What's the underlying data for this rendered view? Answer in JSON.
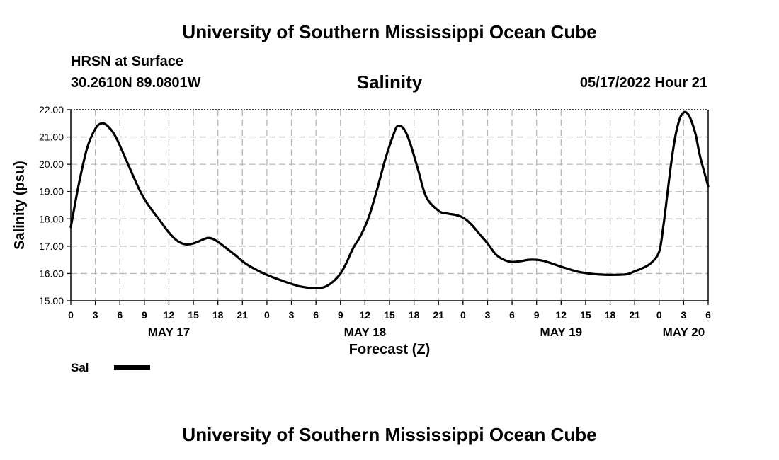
{
  "header": {
    "organization": "University of Southern Mississippi Ocean Cube",
    "station": "HRSN at Surface",
    "location": "30.2610N  89.0801W",
    "datetime": "05/17/2022 Hour 21"
  },
  "footer": {
    "organization": "University of Southern Mississippi Ocean Cube"
  },
  "chart_data": {
    "type": "line",
    "title": "Salinity",
    "xlabel": "Forecast (Z)",
    "ylabel": "Salinity (psu)",
    "ylim": [
      15.0,
      22.0
    ],
    "xlim": [
      0,
      78
    ],
    "x_unit": "hours since 2022-05-17 00Z",
    "y_ticks": [
      "15.00",
      "16.00",
      "17.00",
      "18.00",
      "19.00",
      "20.00",
      "21.00",
      "22.00"
    ],
    "x_tick_labels": [
      "0",
      "3",
      "6",
      "9",
      "12",
      "15",
      "18",
      "21",
      "0",
      "3",
      "6",
      "9",
      "12",
      "15",
      "18",
      "21",
      "0",
      "3",
      "6",
      "9",
      "12",
      "15",
      "18",
      "21",
      "0",
      "3",
      "6"
    ],
    "day_labels": [
      {
        "label": "MAY 17",
        "hour": 12
      },
      {
        "label": "MAY 18",
        "hour": 36
      },
      {
        "label": "MAY 19",
        "hour": 60
      },
      {
        "label": "MAY 20",
        "hour": 75
      }
    ],
    "grid": true,
    "legend": {
      "position": "bottom-left",
      "entries": [
        {
          "name": "Sal",
          "color": "#000000"
        }
      ]
    },
    "series": [
      {
        "name": "Sal",
        "color": "#000000",
        "x": [
          0,
          1,
          2,
          3,
          3.75,
          4.5,
          5.5,
          7,
          8.5,
          9.5,
          11,
          12,
          13,
          14,
          15,
          16,
          16.75,
          17.5,
          18.5,
          20,
          21,
          22,
          24,
          26,
          27,
          28,
          29,
          30,
          31,
          32,
          33,
          33.75,
          34.5,
          35.5,
          36.5,
          37.5,
          38.5,
          39.5,
          40,
          40.75,
          41.5,
          42.5,
          43.5,
          45,
          46,
          47,
          48,
          49,
          50,
          51,
          52,
          53,
          54,
          55,
          56,
          57,
          58,
          60,
          62,
          64,
          66,
          68,
          69,
          70,
          71,
          72,
          72.5,
          73,
          73.5,
          74,
          74.5,
          75,
          75.5,
          76,
          76.5,
          77,
          78
        ],
        "y": [
          17.7,
          19.3,
          20.6,
          21.3,
          21.5,
          21.4,
          21.0,
          20.0,
          19.0,
          18.5,
          17.9,
          17.5,
          17.2,
          17.07,
          17.1,
          17.22,
          17.3,
          17.25,
          17.05,
          16.7,
          16.45,
          16.25,
          15.95,
          15.72,
          15.62,
          15.53,
          15.48,
          15.47,
          15.5,
          15.68,
          16.0,
          16.4,
          16.9,
          17.4,
          18.1,
          19.1,
          20.2,
          21.1,
          21.4,
          21.3,
          20.8,
          19.8,
          18.8,
          18.3,
          18.2,
          18.15,
          18.05,
          17.8,
          17.45,
          17.1,
          16.7,
          16.5,
          16.42,
          16.45,
          16.5,
          16.5,
          16.45,
          16.25,
          16.07,
          15.98,
          15.95,
          15.97,
          16.08,
          16.2,
          16.38,
          16.8,
          17.7,
          18.9,
          20.1,
          21.05,
          21.65,
          21.9,
          21.85,
          21.55,
          21.05,
          20.3,
          19.2
        ]
      }
    ]
  }
}
